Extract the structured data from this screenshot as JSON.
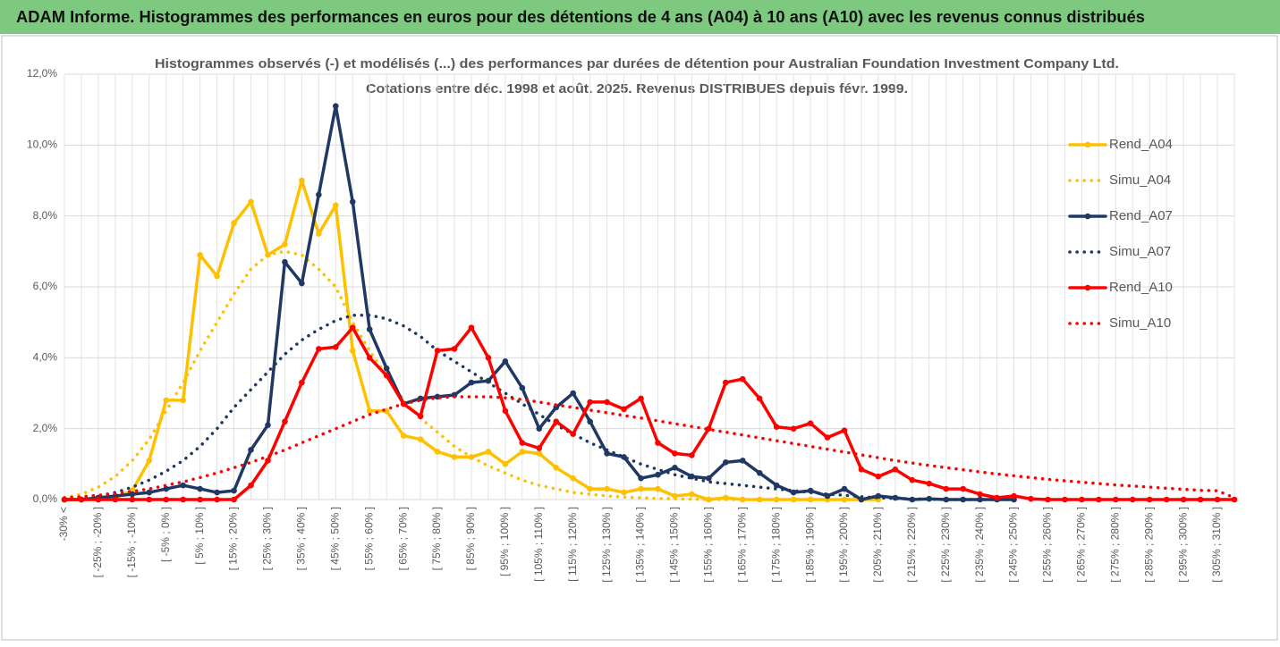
{
  "header": {
    "title": "ADAM Informe. Histogrammes des performances en euros pour des détentions de 4 ans (A04) à 10 ans (A10) avec les revenus connus distribués"
  },
  "chart_data": {
    "type": "line",
    "title": "Histogrammes observés (-) et modélisés (...) des performances par durées de détention pour Australian Foundation Investment Company Ltd.",
    "subtitle": "Cotations entre déc. 1998 et août. 2025. Revenus DISTRIBUES depuis févr. 1999.",
    "categories": [
      "-30% <",
      null,
      "[ -25% ; -20% ]",
      null,
      "[ -15% ; -10% ]",
      null,
      "[ -5% ; 0% ]",
      null,
      "[ 5% ; 10% ]",
      null,
      "[ 15% ; 20% ]",
      null,
      "[ 25% ; 30% ]",
      null,
      "[ 35% ; 40% ]",
      null,
      "[ 45% ; 50% ]",
      null,
      "[ 55% ; 60% ]",
      null,
      "[ 65% ; 70% ]",
      null,
      "[ 75% ; 80% ]",
      null,
      "[ 85% ; 90% ]",
      null,
      "[ 95% ; 100% ]",
      null,
      "[ 105% ; 110% ]",
      null,
      "[ 115% ; 120% ]",
      null,
      "[ 125% ; 130% ]",
      null,
      "[ 135% ; 140% ]",
      null,
      "[ 145% ; 150% ]",
      null,
      "[ 155% ; 160% ]",
      null,
      "[ 165% ; 170% ]",
      null,
      "[ 175% ; 180% ]",
      null,
      "[ 185% ; 190% ]",
      null,
      "[ 195% ; 200% ]",
      null,
      "[ 205% ; 210% ]",
      null,
      "[ 215% ; 220% ]",
      null,
      "[ 225% ; 230% ]",
      null,
      "[ 235% ; 240% ]",
      null,
      "[ 245% ; 250% ]",
      null,
      "[ 255% ; 260% ]",
      null,
      "[ 265% ; 270% ]",
      null,
      "[ 275% ; 280% ]",
      null,
      "[ 285% ; 290% ]",
      null,
      "[ 295% ; 300% ]",
      null,
      "[ 305% ; 310% ]",
      null
    ],
    "series": [
      {
        "name": "Rend_A04",
        "color": "#ffc000",
        "style": "solid",
        "values": [
          0,
          0,
          0,
          0.05,
          0.25,
          1.1,
          2.8,
          2.8,
          6.9,
          6.3,
          7.8,
          8.4,
          6.9,
          7.2,
          9.0,
          7.5,
          8.3,
          4.2,
          2.5,
          2.5,
          1.8,
          1.7,
          1.35,
          1.2,
          1.2,
          1.35,
          1.0,
          1.35,
          1.3,
          0.9,
          0.6,
          0.3,
          0.3,
          0.2,
          0.3,
          0.3,
          0.1,
          0.15,
          0,
          0.05,
          0,
          0,
          0,
          0,
          0,
          0,
          0,
          0,
          0,
          null,
          null,
          null,
          null,
          null,
          null,
          null,
          null,
          null,
          null,
          null,
          null,
          null,
          null,
          null,
          null,
          null,
          null,
          null,
          null,
          null
        ]
      },
      {
        "name": "Simu_A04",
        "color": "#ffc000",
        "style": "dotted",
        "values": [
          0.05,
          0.15,
          0.35,
          0.65,
          1.1,
          1.7,
          2.5,
          3.3,
          4.2,
          5.0,
          5.8,
          6.5,
          6.9,
          7.0,
          6.9,
          6.5,
          6.0,
          5.0,
          4.2,
          3.5,
          2.8,
          2.3,
          1.9,
          1.5,
          1.2,
          0.95,
          0.75,
          0.55,
          0.4,
          0.3,
          0.2,
          0.15,
          0.1,
          0.07,
          0.05,
          0.03,
          0.02,
          0.01,
          0,
          0,
          0,
          0,
          0,
          0,
          0,
          0,
          0,
          0,
          0,
          null,
          null,
          null,
          null,
          null,
          null,
          null,
          null,
          null,
          null,
          null,
          null,
          null,
          null,
          null,
          null,
          null,
          null,
          null,
          null,
          null
        ]
      },
      {
        "name": "Rend_A07",
        "color": "#1f3864",
        "style": "solid",
        "values": [
          0,
          0,
          0.05,
          0.1,
          0.15,
          0.2,
          0.3,
          0.4,
          0.3,
          0.2,
          0.25,
          1.4,
          2.1,
          6.7,
          6.1,
          8.6,
          11.1,
          8.4,
          4.8,
          3.7,
          2.7,
          2.85,
          2.9,
          2.95,
          3.3,
          3.35,
          3.9,
          3.15,
          2.0,
          2.6,
          3.0,
          2.2,
          1.3,
          1.2,
          0.6,
          0.7,
          0.9,
          0.65,
          0.6,
          1.05,
          1.1,
          0.75,
          0.4,
          0.2,
          0.25,
          0.1,
          0.3,
          0,
          0.1,
          0.05,
          0,
          0.02,
          0,
          0,
          0,
          0,
          0,
          null,
          null,
          null,
          null,
          null,
          null,
          null,
          null,
          null,
          null,
          null,
          null,
          null
        ]
      },
      {
        "name": "Simu_A07",
        "color": "#1f3864",
        "style": "dotted",
        "values": [
          0,
          0.05,
          0.1,
          0.2,
          0.35,
          0.55,
          0.8,
          1.1,
          1.5,
          2.0,
          2.6,
          3.1,
          3.6,
          4.1,
          4.5,
          4.8,
          5.05,
          5.2,
          5.2,
          5.1,
          4.9,
          4.6,
          4.2,
          3.9,
          3.6,
          3.3,
          3.0,
          2.7,
          2.4,
          2.1,
          1.85,
          1.6,
          1.4,
          1.2,
          1.0,
          0.85,
          0.7,
          0.6,
          0.5,
          0.45,
          0.4,
          0.35,
          0.3,
          0.25,
          0.2,
          0.15,
          0.12,
          0.08,
          0.05,
          0.03,
          0.02,
          0.01,
          0,
          0,
          0,
          0,
          0,
          null,
          null,
          null,
          null,
          null,
          null,
          null,
          null,
          null,
          null,
          null,
          null,
          null
        ]
      },
      {
        "name": "Rend_A10",
        "color": "#ff0000",
        "style": "solid",
        "values": [
          0,
          0,
          0,
          0,
          0,
          0,
          0,
          0,
          0,
          0,
          0,
          0.4,
          1.1,
          2.2,
          3.3,
          4.25,
          4.3,
          4.85,
          4.0,
          3.5,
          2.7,
          2.35,
          4.2,
          4.25,
          4.85,
          4.0,
          2.5,
          1.6,
          1.45,
          2.2,
          1.85,
          2.75,
          2.75,
          2.55,
          2.85,
          1.6,
          1.3,
          1.25,
          2.0,
          3.3,
          3.4,
          2.85,
          2.05,
          2.0,
          2.15,
          1.75,
          1.95,
          0.85,
          0.65,
          0.85,
          0.55,
          0.45,
          0.3,
          0.3,
          0.15,
          0.05,
          0.1,
          0.02,
          0,
          0,
          0,
          0,
          0,
          0,
          0,
          0,
          0,
          0,
          0,
          0
        ]
      },
      {
        "name": "Simu_A10",
        "color": "#ff0000",
        "style": "dotted",
        "values": [
          0.05,
          0.08,
          0.12,
          0.17,
          0.23,
          0.3,
          0.4,
          0.5,
          0.62,
          0.75,
          0.9,
          1.05,
          1.22,
          1.4,
          1.6,
          1.8,
          2.0,
          2.2,
          2.4,
          2.55,
          2.7,
          2.8,
          2.87,
          2.9,
          2.9,
          2.9,
          2.87,
          2.82,
          2.75,
          2.67,
          2.6,
          2.52,
          2.45,
          2.37,
          2.3,
          2.22,
          2.14,
          2.06,
          1.98,
          1.9,
          1.82,
          1.74,
          1.66,
          1.58,
          1.5,
          1.42,
          1.34,
          1.26,
          1.18,
          1.1,
          1.03,
          0.96,
          0.9,
          0.84,
          0.78,
          0.72,
          0.67,
          0.62,
          0.57,
          0.53,
          0.49,
          0.45,
          0.41,
          0.38,
          0.35,
          0.32,
          0.29,
          0.26,
          0.25,
          0.05
        ]
      }
    ],
    "ylim": [
      0,
      12
    ],
    "yticks": [
      {
        "value": 0,
        "label": "0,0%"
      },
      {
        "value": 2,
        "label": "2,0%"
      },
      {
        "value": 4,
        "label": "4,0%"
      },
      {
        "value": 6,
        "label": "6,0%"
      },
      {
        "value": 8,
        "label": "8,0%"
      },
      {
        "value": 10,
        "label": "10,0%"
      },
      {
        "value": 12,
        "label": "12,0%"
      }
    ],
    "grid": true,
    "legend": "right"
  }
}
